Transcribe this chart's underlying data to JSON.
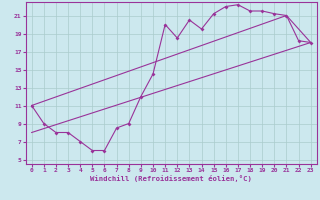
{
  "bg_color": "#cce8ee",
  "grid_color": "#aacccc",
  "line_color": "#993399",
  "xlabel": "Windchill (Refroidissement éolien,°C)",
  "xlim": [
    -0.5,
    23.5
  ],
  "ylim": [
    4.5,
    22.5
  ],
  "yticks": [
    5,
    7,
    9,
    11,
    13,
    15,
    17,
    19,
    21
  ],
  "xticks": [
    0,
    1,
    2,
    3,
    4,
    5,
    6,
    7,
    8,
    9,
    10,
    11,
    12,
    13,
    14,
    15,
    16,
    17,
    18,
    19,
    20,
    21,
    22,
    23
  ],
  "series1_x": [
    0,
    1,
    2,
    3,
    4,
    5,
    6,
    7,
    8,
    9,
    10,
    11,
    12,
    13,
    14,
    15,
    16,
    17,
    18,
    19,
    20,
    21,
    22,
    23
  ],
  "series1_y": [
    11,
    9,
    8,
    8,
    7,
    6,
    6,
    8.5,
    9,
    12,
    14.5,
    20,
    18.5,
    20.5,
    19.5,
    21.2,
    22,
    22.2,
    21.5,
    21.5,
    21.2,
    21,
    18.2,
    18
  ],
  "series2_x": [
    0,
    21,
    23
  ],
  "series2_y": [
    11,
    21,
    18
  ],
  "series3_x": [
    0,
    23
  ],
  "series3_y": [
    8,
    18
  ]
}
